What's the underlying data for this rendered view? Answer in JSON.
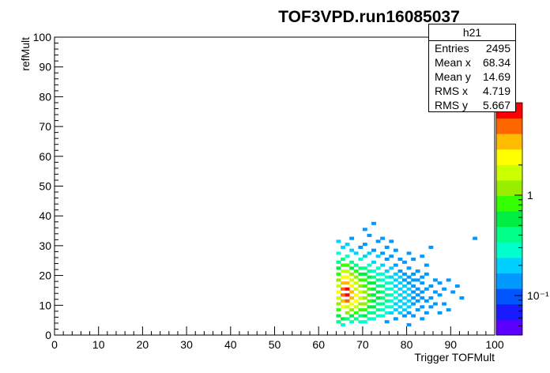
{
  "chart_data": {
    "type": "heatmap",
    "title": "TOF3VPD.run16085037",
    "xlabel": "Trigger TOFMult",
    "ylabel": "refMult",
    "xlim": [
      0,
      100
    ],
    "ylim": [
      0,
      100
    ],
    "x_ticks": [
      "0",
      "10",
      "20",
      "30",
      "40",
      "50",
      "60",
      "70",
      "80",
      "90",
      "100"
    ],
    "y_ticks": [
      "0",
      "10",
      "20",
      "30",
      "40",
      "50",
      "60",
      "70",
      "80",
      "90",
      "100"
    ],
    "palette_ticks": [
      "1",
      "10⁻¹"
    ],
    "palette_colors": [
      "#5b00ff",
      "#1a1aff",
      "#0055ff",
      "#0099ff",
      "#00d0ff",
      "#00ffcc",
      "#00ff88",
      "#00ee44",
      "#33ff00",
      "#99ee00",
      "#ccff00",
      "#ffff00",
      "#ffbb00",
      "#ff6600",
      "#ff0000"
    ],
    "log_z": true,
    "bins": [
      [
        64,
        4,
        6
      ],
      [
        64,
        6,
        7
      ],
      [
        64,
        8,
        8
      ],
      [
        64,
        10,
        9
      ],
      [
        64,
        12,
        10
      ],
      [
        64,
        14,
        11
      ],
      [
        64,
        16,
        10
      ],
      [
        64,
        18,
        9
      ],
      [
        64,
        20,
        8
      ],
      [
        64,
        22,
        7
      ],
      [
        64,
        24,
        6
      ],
      [
        64,
        27,
        5
      ],
      [
        64,
        31,
        4
      ],
      [
        65,
        3,
        5
      ],
      [
        65,
        5,
        7
      ],
      [
        65,
        9,
        11
      ],
      [
        65,
        11,
        12
      ],
      [
        65,
        13,
        13
      ],
      [
        65,
        15,
        13
      ],
      [
        65,
        17,
        12
      ],
      [
        65,
        19,
        11
      ],
      [
        65,
        21,
        10
      ],
      [
        65,
        23,
        8
      ],
      [
        65,
        25,
        6
      ],
      [
        65,
        29,
        4
      ],
      [
        66,
        5,
        6
      ],
      [
        66,
        7,
        9
      ],
      [
        66,
        9,
        10
      ],
      [
        66,
        11,
        13
      ],
      [
        66,
        13,
        14
      ],
      [
        66,
        15,
        14
      ],
      [
        66,
        17,
        12
      ],
      [
        66,
        19,
        11
      ],
      [
        66,
        21,
        10
      ],
      [
        66,
        23,
        8
      ],
      [
        66,
        26,
        5
      ],
      [
        66,
        30,
        4
      ],
      [
        67,
        4,
        5
      ],
      [
        67,
        6,
        7
      ],
      [
        67,
        8,
        9
      ],
      [
        67,
        10,
        11
      ],
      [
        67,
        12,
        12
      ],
      [
        67,
        14,
        12
      ],
      [
        67,
        16,
        11
      ],
      [
        67,
        18,
        10
      ],
      [
        67,
        20,
        9
      ],
      [
        67,
        22,
        7
      ],
      [
        67,
        24,
        6
      ],
      [
        67,
        28,
        4
      ],
      [
        67,
        32,
        3
      ],
      [
        68,
        5,
        6
      ],
      [
        68,
        7,
        8
      ],
      [
        68,
        9,
        10
      ],
      [
        68,
        11,
        11
      ],
      [
        68,
        13,
        11
      ],
      [
        68,
        15,
        10
      ],
      [
        68,
        17,
        10
      ],
      [
        68,
        19,
        9
      ],
      [
        68,
        21,
        8
      ],
      [
        68,
        23,
        6
      ],
      [
        68,
        27,
        4
      ],
      [
        69,
        4,
        5
      ],
      [
        69,
        6,
        6
      ],
      [
        69,
        8,
        8
      ],
      [
        69,
        10,
        9
      ],
      [
        69,
        12,
        10
      ],
      [
        69,
        14,
        10
      ],
      [
        69,
        16,
        9
      ],
      [
        69,
        18,
        8
      ],
      [
        69,
        20,
        7
      ],
      [
        69,
        22,
        6
      ],
      [
        69,
        25,
        5
      ],
      [
        69,
        29,
        3
      ],
      [
        70,
        4,
        5
      ],
      [
        70,
        6,
        7
      ],
      [
        70,
        8,
        8
      ],
      [
        70,
        10,
        9
      ],
      [
        70,
        12,
        9
      ],
      [
        70,
        14,
        9
      ],
      [
        70,
        16,
        8
      ],
      [
        70,
        18,
        8
      ],
      [
        70,
        20,
        7
      ],
      [
        70,
        22,
        6
      ],
      [
        70,
        26,
        4
      ],
      [
        70,
        30,
        3
      ],
      [
        70,
        35,
        3
      ],
      [
        71,
        5,
        5
      ],
      [
        71,
        7,
        6
      ],
      [
        71,
        9,
        7
      ],
      [
        71,
        11,
        8
      ],
      [
        71,
        13,
        8
      ],
      [
        71,
        15,
        8
      ],
      [
        71,
        17,
        7
      ],
      [
        71,
        19,
        7
      ],
      [
        71,
        21,
        6
      ],
      [
        71,
        23,
        5
      ],
      [
        71,
        27,
        4
      ],
      [
        71,
        33,
        3
      ],
      [
        72,
        5,
        5
      ],
      [
        72,
        7,
        6
      ],
      [
        72,
        9,
        7
      ],
      [
        72,
        11,
        7
      ],
      [
        72,
        13,
        7
      ],
      [
        72,
        15,
        7
      ],
      [
        72,
        17,
        7
      ],
      [
        72,
        19,
        6
      ],
      [
        72,
        21,
        5
      ],
      [
        72,
        24,
        4
      ],
      [
        72,
        28,
        3
      ],
      [
        72,
        37,
        3
      ],
      [
        73,
        6,
        5
      ],
      [
        73,
        8,
        6
      ],
      [
        73,
        10,
        6
      ],
      [
        73,
        12,
        7
      ],
      [
        73,
        14,
        7
      ],
      [
        73,
        16,
        6
      ],
      [
        73,
        18,
        6
      ],
      [
        73,
        20,
        5
      ],
      [
        73,
        22,
        5
      ],
      [
        73,
        26,
        4
      ],
      [
        73,
        31,
        3
      ],
      [
        74,
        6,
        5
      ],
      [
        74,
        8,
        5
      ],
      [
        74,
        10,
        6
      ],
      [
        74,
        12,
        6
      ],
      [
        74,
        14,
        6
      ],
      [
        74,
        16,
        6
      ],
      [
        74,
        18,
        5
      ],
      [
        74,
        20,
        5
      ],
      [
        74,
        23,
        4
      ],
      [
        74,
        27,
        3
      ],
      [
        74,
        32,
        3
      ],
      [
        75,
        4,
        3
      ],
      [
        75,
        7,
        5
      ],
      [
        75,
        9,
        5
      ],
      [
        75,
        11,
        6
      ],
      [
        75,
        13,
        6
      ],
      [
        75,
        15,
        5
      ],
      [
        75,
        17,
        5
      ],
      [
        75,
        19,
        5
      ],
      [
        75,
        21,
        4
      ],
      [
        75,
        25,
        3
      ],
      [
        75,
        29,
        3
      ],
      [
        76,
        7,
        4
      ],
      [
        76,
        9,
        5
      ],
      [
        76,
        11,
        5
      ],
      [
        76,
        13,
        5
      ],
      [
        76,
        15,
        5
      ],
      [
        76,
        17,
        5
      ],
      [
        76,
        19,
        4
      ],
      [
        76,
        22,
        4
      ],
      [
        76,
        26,
        3
      ],
      [
        76,
        31,
        3
      ],
      [
        77,
        5,
        3
      ],
      [
        77,
        8,
        4
      ],
      [
        77,
        10,
        4
      ],
      [
        77,
        12,
        5
      ],
      [
        77,
        14,
        5
      ],
      [
        77,
        16,
        4
      ],
      [
        77,
        18,
        4
      ],
      [
        77,
        20,
        4
      ],
      [
        77,
        23,
        3
      ],
      [
        77,
        28,
        3
      ],
      [
        78,
        7,
        4
      ],
      [
        78,
        9,
        4
      ],
      [
        78,
        11,
        4
      ],
      [
        78,
        13,
        4
      ],
      [
        78,
        15,
        4
      ],
      [
        78,
        17,
        4
      ],
      [
        78,
        19,
        4
      ],
      [
        78,
        21,
        3
      ],
      [
        78,
        25,
        3
      ],
      [
        79,
        6,
        3
      ],
      [
        79,
        8,
        4
      ],
      [
        79,
        10,
        4
      ],
      [
        79,
        12,
        4
      ],
      [
        79,
        14,
        4
      ],
      [
        79,
        16,
        4
      ],
      [
        79,
        18,
        3
      ],
      [
        79,
        20,
        3
      ],
      [
        79,
        24,
        3
      ],
      [
        80,
        3,
        3
      ],
      [
        80,
        7,
        3
      ],
      [
        80,
        9,
        4
      ],
      [
        80,
        11,
        4
      ],
      [
        80,
        13,
        4
      ],
      [
        80,
        15,
        4
      ],
      [
        80,
        17,
        3
      ],
      [
        80,
        19,
        3
      ],
      [
        80,
        22,
        3
      ],
      [
        80,
        27,
        3
      ],
      [
        81,
        6,
        3
      ],
      [
        81,
        10,
        3
      ],
      [
        81,
        12,
        3
      ],
      [
        81,
        14,
        3
      ],
      [
        81,
        16,
        3
      ],
      [
        81,
        18,
        3
      ],
      [
        81,
        20,
        3
      ],
      [
        81,
        25,
        3
      ],
      [
        82,
        8,
        3
      ],
      [
        82,
        11,
        3
      ],
      [
        82,
        13,
        3
      ],
      [
        82,
        15,
        3
      ],
      [
        82,
        18,
        3
      ],
      [
        82,
        21,
        3
      ],
      [
        83,
        5,
        3
      ],
      [
        83,
        9,
        3
      ],
      [
        83,
        12,
        3
      ],
      [
        83,
        14,
        3
      ],
      [
        83,
        17,
        3
      ],
      [
        83,
        19,
        3
      ],
      [
        83,
        26,
        3
      ],
      [
        84,
        7,
        3
      ],
      [
        84,
        11,
        3
      ],
      [
        84,
        15,
        3
      ],
      [
        84,
        20,
        3
      ],
      [
        84,
        23,
        3
      ],
      [
        85,
        9,
        3
      ],
      [
        85,
        12,
        3
      ],
      [
        85,
        16,
        3
      ],
      [
        85,
        29,
        3
      ],
      [
        86,
        10,
        3
      ],
      [
        86,
        14,
        3
      ],
      [
        86,
        18,
        3
      ],
      [
        87,
        7,
        3
      ],
      [
        87,
        13,
        3
      ],
      [
        87,
        17,
        3
      ],
      [
        88,
        10,
        3
      ],
      [
        88,
        15,
        3
      ],
      [
        89,
        8,
        3
      ],
      [
        89,
        18,
        3
      ],
      [
        90,
        14,
        3
      ],
      [
        91,
        16,
        3
      ],
      [
        92,
        12,
        3
      ],
      [
        95,
        32,
        3
      ]
    ]
  },
  "stats_box": {
    "name": "h21",
    "rows": [
      {
        "label": "Entries",
        "value": "2495"
      },
      {
        "label": "Mean x",
        "value": "68.34"
      },
      {
        "label": "Mean y",
        "value": "14.69"
      },
      {
        "label": "RMS x",
        "value": "4.719"
      },
      {
        "label": "RMS y",
        "value": "5.667"
      }
    ]
  }
}
